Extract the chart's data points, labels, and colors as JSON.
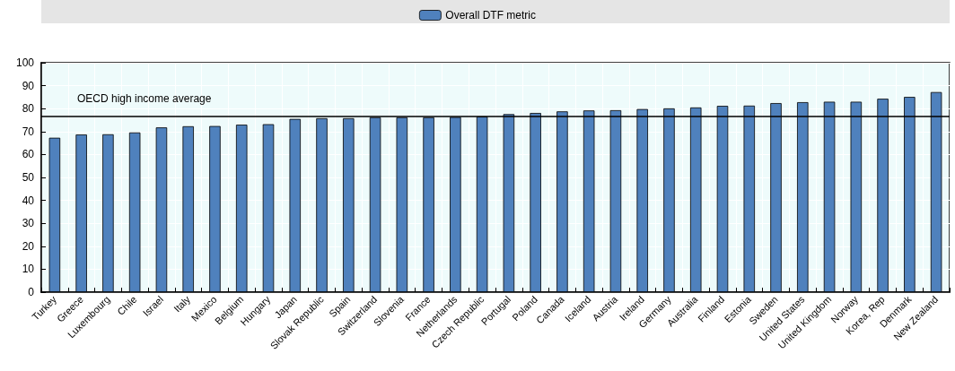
{
  "chart_data": {
    "type": "bar",
    "categories": [
      "Turkey",
      "Greece",
      "Luxembourg",
      "Chile",
      "Israel",
      "Italy",
      "Mexico",
      "Belgium",
      "Hungary",
      "Japan",
      "Slovak Republic",
      "Spain",
      "Switzerland",
      "Slovenia",
      "France",
      "Netherlands",
      "Czech Republic",
      "Portugal",
      "Poland",
      "Canada",
      "Iceland",
      "Austria",
      "Ireland",
      "Germany",
      "Australia",
      "Finland",
      "Estonia",
      "Sweden",
      "United States",
      "United Kingdom",
      "Norway",
      "Korea, Rep",
      "Denmark",
      "New Zealand"
    ],
    "series": [
      {
        "name": "Overall DTF metric",
        "color": "#4f81bd",
        "values": [
          67.3,
          68.7,
          68.8,
          69.6,
          71.8,
          72.3,
          72.4,
          73.0,
          73.2,
          75.5,
          75.8,
          75.8,
          76.2,
          76.2,
          76.2,
          76.3,
          76.5,
          77.6,
          78.1,
          78.8,
          79.2,
          79.3,
          79.8,
          80.1,
          80.5,
          81.2,
          81.3,
          82.4,
          82.8,
          83.0,
          83.0,
          84.3,
          85.1,
          87.2
        ]
      }
    ],
    "ylim": [
      0,
      100
    ],
    "yticks": [
      0,
      10,
      20,
      30,
      40,
      50,
      60,
      70,
      80,
      90,
      100
    ],
    "ref_lines": [
      {
        "axis": "y",
        "value": 76.6,
        "label": "OECD high income average",
        "color": "#000000"
      }
    ],
    "grid": true,
    "legend": "top"
  }
}
